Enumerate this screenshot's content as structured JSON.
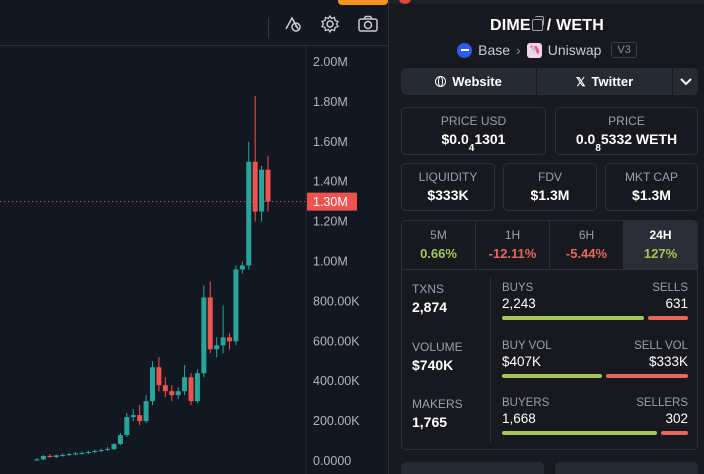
{
  "chart": {
    "current_price_label": "1.30M",
    "y_axis_labels": [
      "2.00M",
      "1.80M",
      "1.60M",
      "1.40M",
      "1.20M",
      "1.00M",
      "800.00K",
      "600.00K",
      "400.00K",
      "200.00K",
      "0.0000"
    ],
    "colors": {
      "up": "#26a69a",
      "down": "#ef5350",
      "background": "#131722",
      "price_tag": "#ef5350"
    },
    "toolbar_icons": [
      "indicators-icon",
      "settings-gear-icon",
      "camera-icon"
    ]
  },
  "chart_data": {
    "type": "candlestick",
    "ylim": [
      0,
      2000000
    ],
    "candles": [
      {
        "o": 5000,
        "h": 15000,
        "l": 2000,
        "c": 8000
      },
      {
        "o": 8000,
        "h": 30000,
        "l": 5000,
        "c": 25000
      },
      {
        "o": 25000,
        "h": 35000,
        "l": 15000,
        "c": 20000
      },
      {
        "o": 20000,
        "h": 32000,
        "l": 15000,
        "c": 28000
      },
      {
        "o": 28000,
        "h": 38000,
        "l": 22000,
        "c": 30000
      },
      {
        "o": 30000,
        "h": 40000,
        "l": 25000,
        "c": 35000
      },
      {
        "o": 35000,
        "h": 45000,
        "l": 30000,
        "c": 38000
      },
      {
        "o": 38000,
        "h": 48000,
        "l": 32000,
        "c": 40000
      },
      {
        "o": 40000,
        "h": 52000,
        "l": 35000,
        "c": 45000
      },
      {
        "o": 45000,
        "h": 58000,
        "l": 40000,
        "c": 50000
      },
      {
        "o": 50000,
        "h": 62000,
        "l": 45000,
        "c": 55000
      },
      {
        "o": 55000,
        "h": 70000,
        "l": 50000,
        "c": 60000
      },
      {
        "o": 60000,
        "h": 90000,
        "l": 55000,
        "c": 85000
      },
      {
        "o": 85000,
        "h": 140000,
        "l": 80000,
        "c": 130000
      },
      {
        "o": 130000,
        "h": 240000,
        "l": 120000,
        "c": 220000
      },
      {
        "o": 220000,
        "h": 260000,
        "l": 200000,
        "c": 230000
      },
      {
        "o": 230000,
        "h": 280000,
        "l": 180000,
        "c": 200000
      },
      {
        "o": 200000,
        "h": 330000,
        "l": 190000,
        "c": 300000
      },
      {
        "o": 300000,
        "h": 500000,
        "l": 280000,
        "c": 470000
      },
      {
        "o": 470000,
        "h": 520000,
        "l": 350000,
        "c": 380000
      },
      {
        "o": 380000,
        "h": 420000,
        "l": 320000,
        "c": 350000
      },
      {
        "o": 350000,
        "h": 380000,
        "l": 300000,
        "c": 330000
      },
      {
        "o": 330000,
        "h": 370000,
        "l": 310000,
        "c": 350000
      },
      {
        "o": 350000,
        "h": 480000,
        "l": 330000,
        "c": 420000
      },
      {
        "o": 420000,
        "h": 440000,
        "l": 280000,
        "c": 300000
      },
      {
        "o": 300000,
        "h": 460000,
        "l": 290000,
        "c": 440000
      },
      {
        "o": 440000,
        "h": 880000,
        "l": 420000,
        "c": 820000
      },
      {
        "o": 820000,
        "h": 900000,
        "l": 540000,
        "c": 560000
      },
      {
        "o": 560000,
        "h": 620000,
        "l": 520000,
        "c": 580000
      },
      {
        "o": 580000,
        "h": 780000,
        "l": 540000,
        "c": 620000
      },
      {
        "o": 620000,
        "h": 640000,
        "l": 560000,
        "c": 600000
      },
      {
        "o": 600000,
        "h": 980000,
        "l": 580000,
        "c": 960000
      },
      {
        "o": 960000,
        "h": 1000000,
        "l": 940000,
        "c": 980000
      },
      {
        "o": 980000,
        "h": 1600000,
        "l": 960000,
        "c": 1500000
      },
      {
        "o": 1500000,
        "h": 1830000,
        "l": 1200000,
        "c": 1250000
      },
      {
        "o": 1250000,
        "h": 1480000,
        "l": 1200000,
        "c": 1460000
      },
      {
        "o": 1460000,
        "h": 1530000,
        "l": 1250000,
        "c": 1300000
      }
    ]
  },
  "pair": {
    "base": "DIME",
    "separator": "/",
    "quote": "WETH",
    "chain": "Base",
    "dex": "Uniswap",
    "version": "V3"
  },
  "links": {
    "website": "Website",
    "twitter": "Twitter"
  },
  "prices": {
    "usd_label": "PRICE USD",
    "usd_prefix": "$0.0",
    "usd_sub": "4",
    "usd_rest": "1301",
    "native_label": "PRICE",
    "native_prefix": "0.0",
    "native_sub": "8",
    "native_rest": "5332 WETH"
  },
  "metrics": {
    "liquidity_label": "LIQUIDITY",
    "liquidity": "$333K",
    "fdv_label": "FDV",
    "fdv": "$1.3M",
    "mktcap_label": "MKT CAP",
    "mktcap": "$1.3M"
  },
  "timeframes": [
    {
      "label": "5M",
      "value": "0.66%",
      "color": "#a6c65a"
    },
    {
      "label": "1H",
      "value": "-12.11%",
      "color": "#e8675c"
    },
    {
      "label": "6H",
      "value": "-5.44%",
      "color": "#e8675c"
    },
    {
      "label": "24H",
      "value": "127%",
      "color": "#a6c65a"
    }
  ],
  "stats": {
    "txns_label": "TXNS",
    "txns": "2,874",
    "buys_label": "BUYS",
    "buys": "2,243",
    "sells_label": "SELLS",
    "sells": "631",
    "volume_label": "VOLUME",
    "volume": "$740K",
    "buy_vol_label": "BUY VOL",
    "buy_vol": "$407K",
    "sell_vol_label": "SELL VOL",
    "sell_vol": "$333K",
    "makers_label": "MAKERS",
    "makers": "1,765",
    "buyers_label": "BUYERS",
    "buyers": "1,668",
    "sellers_label": "SELLERS",
    "sellers": "302"
  },
  "ratios": {
    "buys_fraction": 0.78,
    "buy_vol_fraction": 0.55,
    "buyers_fraction": 0.85
  }
}
